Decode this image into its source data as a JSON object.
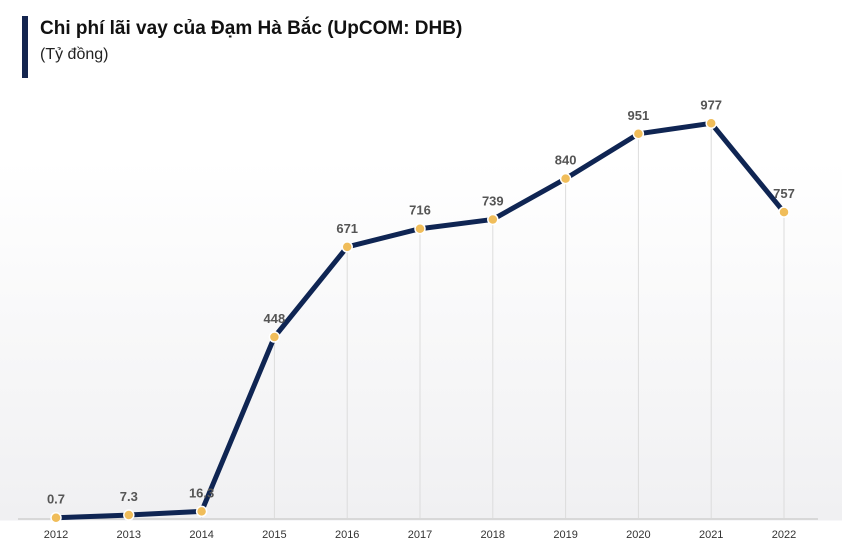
{
  "header": {
    "title": "Chi phí lãi vay của Đạm Hà Bắc (UpCOM: DHB)",
    "subtitle": "(Tỷ đồng)"
  },
  "colors": {
    "line": "#0f2553",
    "marker": "#f0bd5a",
    "marker_stroke": "#ffffff",
    "gridline": "#dcdcdc",
    "axis": "#bfbfbf",
    "accent_bar": "#14254f"
  },
  "chart_data": {
    "type": "line",
    "title": "Chi phí lãi vay của Đạm Hà Bắc (UpCOM: DHB)",
    "subtitle": "(Tỷ đồng)",
    "xlabel": "",
    "ylabel": "",
    "categories": [
      "2012",
      "2013",
      "2014",
      "2015",
      "2016",
      "2017",
      "2018",
      "2019",
      "2020",
      "2021",
      "2022"
    ],
    "values": [
      0.7,
      7.3,
      16.3,
      448,
      671,
      716,
      739,
      840,
      951,
      977,
      757
    ],
    "value_labels": [
      "0.7",
      "7.3",
      "16.3",
      "448",
      "671",
      "716",
      "739",
      "840",
      "951",
      "977",
      "757"
    ],
    "ylim": [
      0,
      1000
    ],
    "grid": "vertical",
    "legend": "none"
  }
}
